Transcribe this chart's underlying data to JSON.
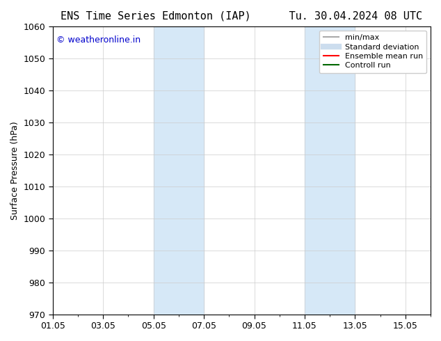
{
  "title": "ENS Time Series Edmonton (IAP)      Tu. 30.04.2024 08 UTC",
  "ylabel": "Surface Pressure (hPa)",
  "ylim": [
    970,
    1060
  ],
  "yticks": [
    970,
    980,
    990,
    1000,
    1010,
    1020,
    1030,
    1040,
    1050,
    1060
  ],
  "xlim_start": "2024-05-01",
  "xlim_end": "2024-05-16",
  "xtick_labels": [
    "01.05",
    "03.05",
    "05.05",
    "07.05",
    "09.05",
    "11.05",
    "13.05",
    "15.05"
  ],
  "xtick_positions": [
    0,
    2,
    4,
    6,
    8,
    10,
    12,
    14
  ],
  "shaded_regions": [
    {
      "x_start": 4,
      "x_end": 6
    },
    {
      "x_start": 10,
      "x_end": 12
    }
  ],
  "shaded_color": "#d6e8f7",
  "watermark_text": "© weatheronline.in",
  "watermark_color": "#0000cc",
  "legend_items": [
    {
      "label": "min/max",
      "color": "#aaaaaa",
      "lw": 1.5,
      "style": "line"
    },
    {
      "label": "Standard deviation",
      "color": "#ccddee",
      "lw": 6,
      "style": "line"
    },
    {
      "label": "Ensemble mean run",
      "color": "#ff0000",
      "lw": 1.5,
      "style": "line"
    },
    {
      "label": "Controll run",
      "color": "#006600",
      "lw": 1.5,
      "style": "line"
    }
  ],
  "bg_color": "#ffffff",
  "plot_bg_color": "#ffffff",
  "grid_color": "#cccccc",
  "border_color": "#000000",
  "title_fontsize": 11,
  "axis_fontsize": 9,
  "watermark_fontsize": 9
}
